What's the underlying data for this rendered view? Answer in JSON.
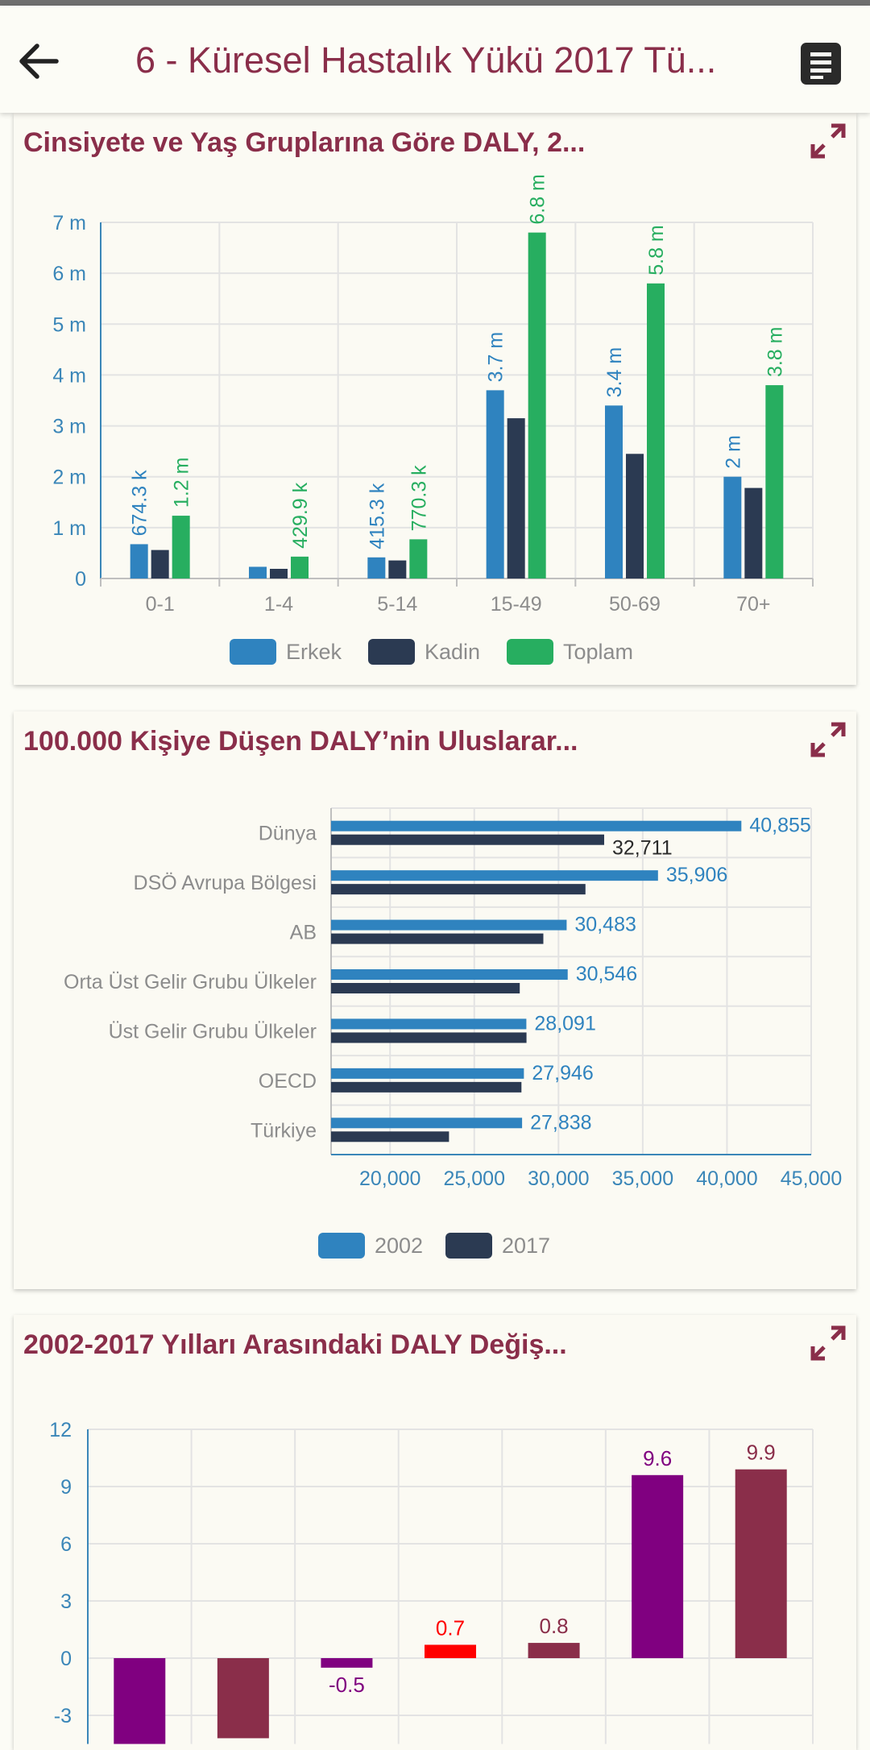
{
  "app": {
    "title": "6 - Küresel Hastalık Yükü 2017 Tü...",
    "back_icon": "arrow-left-icon",
    "menu_icon": "document-menu-icon"
  },
  "colors": {
    "accent": "#8a2e4a",
    "erkek": "#2f83bf",
    "kadin": "#2b3a52",
    "toplam": "#27ae60",
    "purple": "#800080",
    "maroon": "#8a2e4a",
    "red": "#ff0000",
    "axis": "#3a86b8"
  },
  "cards": [
    {
      "title": "Cinsiyete ve Yaş Gruplarına Göre DALY, 2..."
    },
    {
      "title": "100.000 Kişiye Düşen DALY’nin Uluslarar..."
    },
    {
      "title": "2002-2017 Yılları Arasındaki DALY Değiş..."
    }
  ],
  "chart_data": [
    {
      "type": "bar",
      "categories": [
        "0-1",
        "1-4",
        "5-14",
        "15-49",
        "50-69",
        "70+"
      ],
      "series": [
        {
          "name": "Erkek",
          "values": [
            674300,
            230000,
            415300,
            3700000,
            3400000,
            2000000
          ],
          "labels": [
            "674.3 k",
            "",
            "415.3 k",
            "3.7 m",
            "3.4 m",
            "2 m"
          ]
        },
        {
          "name": "Kadin",
          "values": [
            560000,
            190000,
            355000,
            3150000,
            2450000,
            1780000
          ],
          "labels": [
            "",
            "",
            "",
            "",
            "",
            ""
          ]
        },
        {
          "name": "Toplam",
          "values": [
            1234300,
            429900,
            770300,
            6800000,
            5800000,
            3800000
          ],
          "labels": [
            "1.2 m",
            "429.9 k",
            "770.3 k",
            "6.8 m",
            "5.8 m",
            "3.8 m"
          ]
        }
      ],
      "y_ticks": [
        0,
        1000000,
        2000000,
        3000000,
        4000000,
        5000000,
        6000000,
        7000000
      ],
      "y_tick_labels": [
        "0",
        "1 m",
        "2 m",
        "3 m",
        "4 m",
        "5 m",
        "6 m",
        "7 m"
      ],
      "ylim": [
        0,
        7000000
      ],
      "grid": true,
      "legend": "bottom"
    },
    {
      "type": "bar",
      "orientation": "horizontal",
      "categories": [
        "Dünya",
        "DSÖ Avrupa Bölgesi",
        "AB",
        "Orta Üst Gelir Grubu Ülkeler",
        "Üst Gelir Grubu Ülkeler",
        "OECD",
        "Türkiye"
      ],
      "series": [
        {
          "name": "2002",
          "values": [
            40855,
            35906,
            30483,
            30546,
            28091,
            27946,
            27838
          ],
          "labels": [
            "40,855",
            "35,906",
            "30,483",
            "30,546",
            "28,091",
            "27,946",
            "27,838"
          ]
        },
        {
          "name": "2017",
          "values": [
            32711,
            31600,
            29100,
            27700,
            28100,
            27800,
            23500
          ],
          "labels": [
            "32,711",
            "",
            "",
            "",
            "",
            "",
            ""
          ]
        }
      ],
      "x_ticks": [
        20000,
        25000,
        30000,
        35000,
        40000,
        45000
      ],
      "x_tick_labels": [
        "20,000",
        "25,000",
        "30,000",
        "35,000",
        "40,000",
        "45,000"
      ],
      "xlim": [
        16500,
        45000
      ],
      "grid": true,
      "legend": "bottom"
    },
    {
      "type": "bar",
      "values": [
        -4.5,
        -4.2,
        -0.5,
        0.7,
        0.8,
        9.6,
        9.9
      ],
      "labels": [
        "",
        "",
        "-0.5",
        "0.7",
        "0.8",
        "9.6",
        "9.9"
      ],
      "bar_colors": [
        "#800080",
        "#8a2e4a",
        "#800080",
        "#ff0000",
        "#8a2e4a",
        "#800080",
        "#8a2e4a"
      ],
      "y_ticks": [
        -3,
        0,
        3,
        6,
        9,
        12
      ],
      "y_tick_labels": [
        "-3",
        "0",
        "3",
        "6",
        "9",
        "12"
      ],
      "ylim": [
        -4.5,
        12
      ],
      "grid": true
    }
  ]
}
